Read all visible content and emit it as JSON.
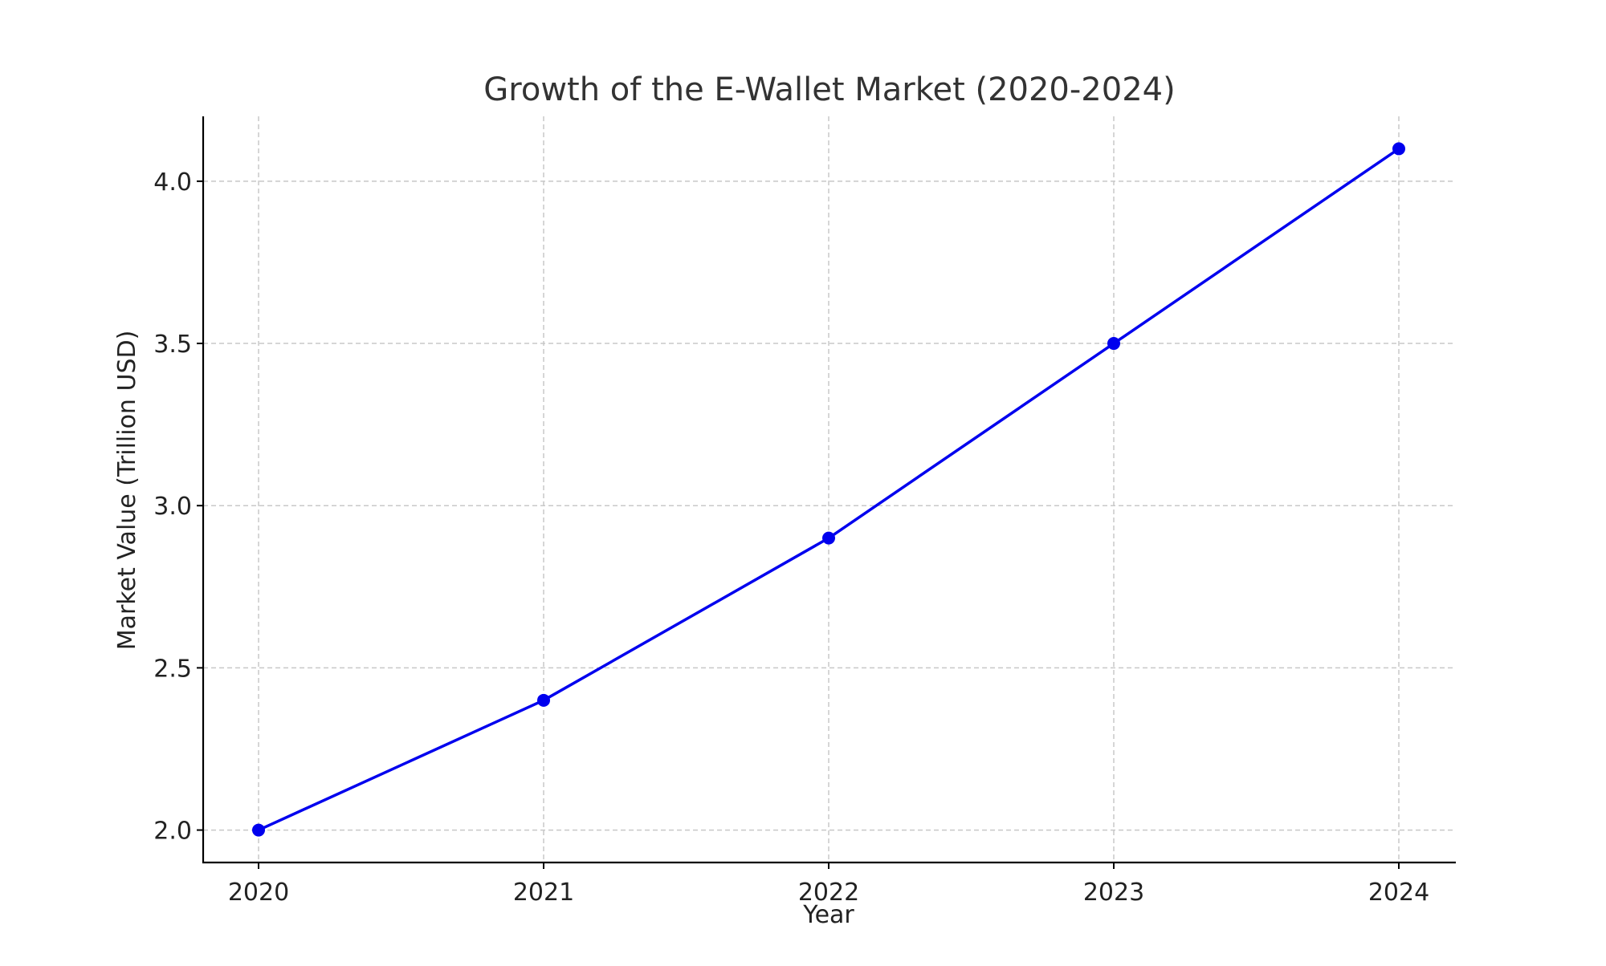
{
  "chart_data": {
    "type": "line",
    "title": "Growth of the E-Wallet Market (2020-2024)",
    "xlabel": "Year",
    "ylabel": "Market Value (Trillion USD)",
    "categories": [
      "2020",
      "2021",
      "2022",
      "2023",
      "2024"
    ],
    "series": [
      {
        "values": [
          2.0,
          2.4,
          2.9,
          3.5,
          4.1
        ],
        "color": "#0000ee",
        "marker": "circle"
      }
    ],
    "yticks": [
      "2.0",
      "2.5",
      "3.0",
      "3.5",
      "4.0"
    ],
    "ylim": [
      1.9,
      4.2
    ],
    "grid": true,
    "grid_style": "dashed",
    "legend": "none"
  }
}
